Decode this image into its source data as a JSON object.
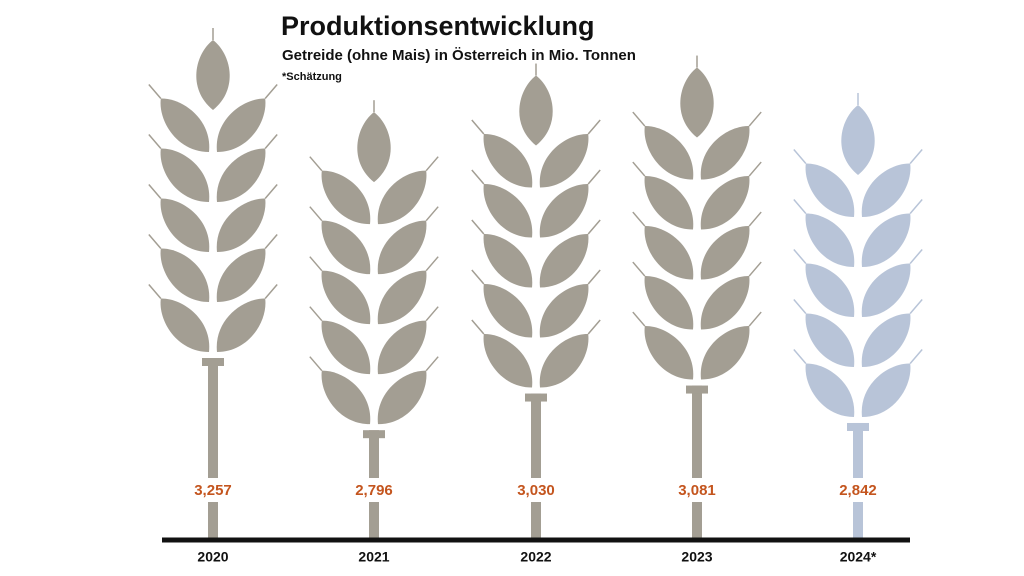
{
  "chart_data": {
    "type": "pictograph",
    "title": "Produktionsentwicklung",
    "subtitle": "Getreide (ohne Mais) in Österreich in Mio. Tonnen",
    "note": "*Schätzung",
    "categories": [
      "2020",
      "2021",
      "2022",
      "2023",
      "2024*"
    ],
    "values": [
      3.257,
      2.796,
      3.03,
      3.081,
      2.842
    ],
    "value_labels": [
      "3,257",
      "2,796",
      "3,030",
      "3,081",
      "2,842"
    ],
    "colors": [
      "#a39e93",
      "#a39e93",
      "#a39e93",
      "#a39e93",
      "#b8c4d8"
    ],
    "label_color": "#c4551e"
  }
}
